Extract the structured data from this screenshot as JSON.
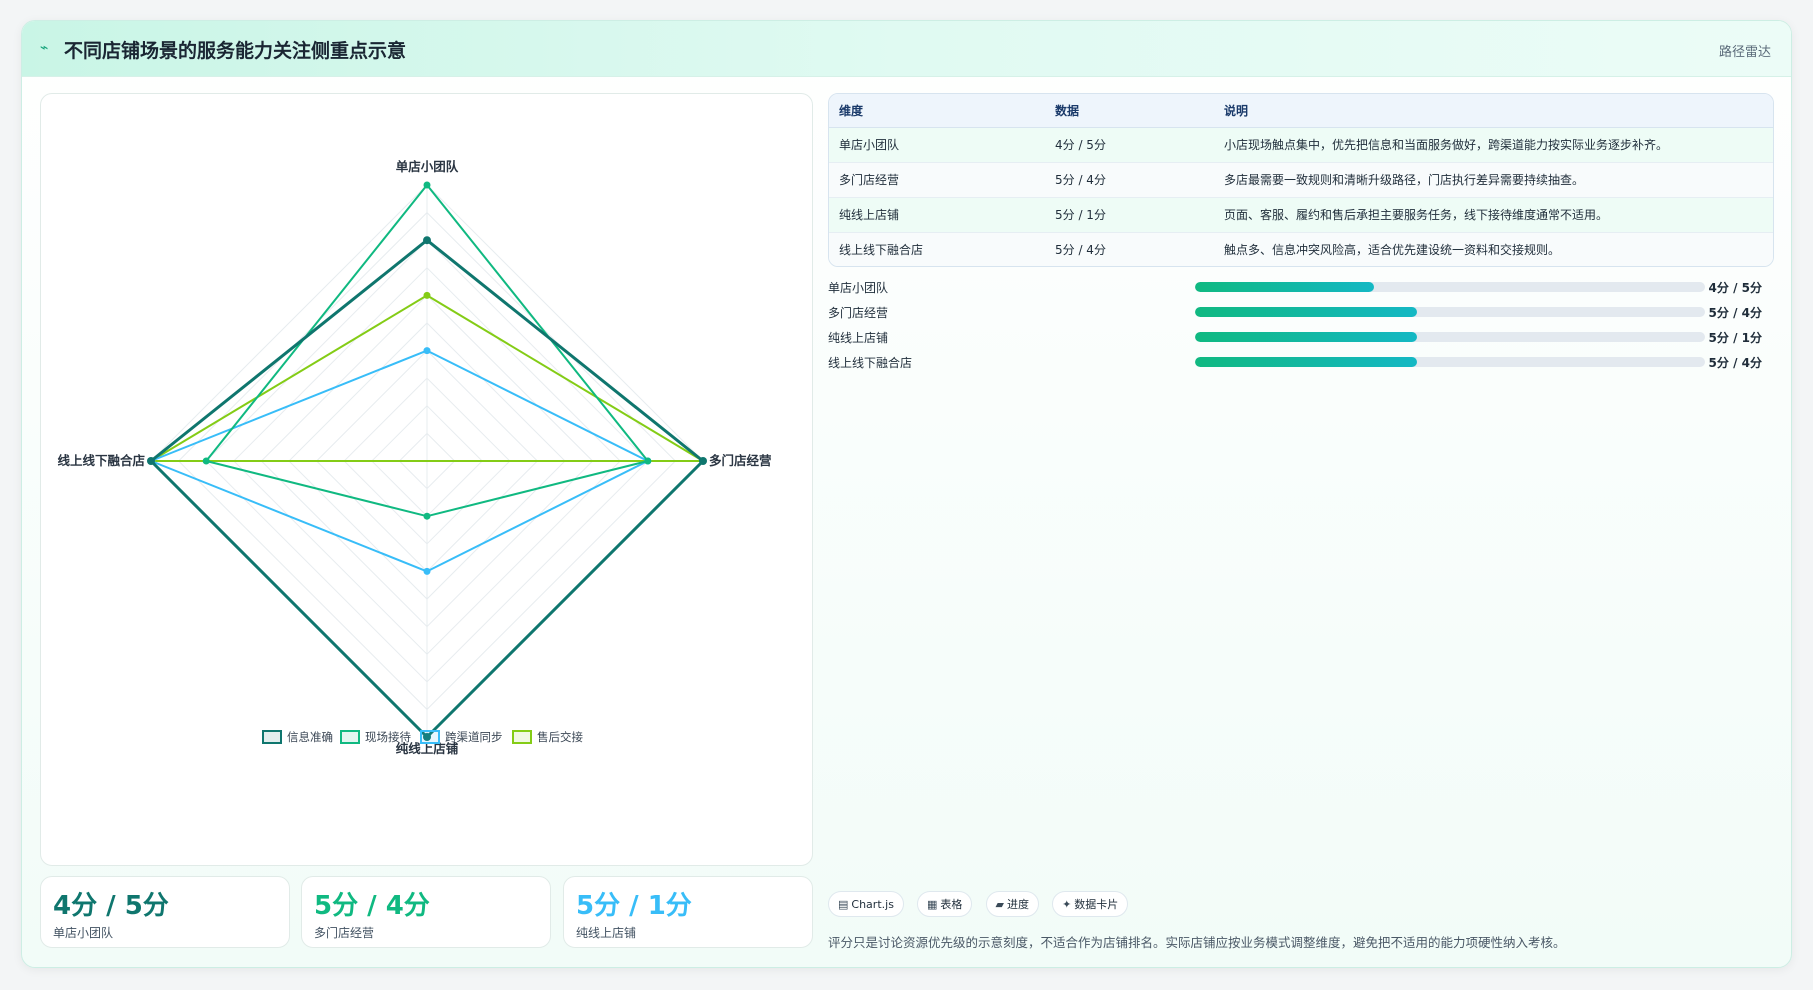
{
  "header": {
    "title_icon": "pulse-icon",
    "title": "不同店铺场景的服务能力关注侧重点示意",
    "tag": "路径雷达"
  },
  "chart_data": {
    "type": "radar",
    "axes": [
      "单店小团队",
      "多门店经营",
      "纯线上店铺",
      "线上线下融合店"
    ],
    "max": 5,
    "series": [
      {
        "name": "信息准确",
        "color": "#0f766e",
        "values": [
          4,
          5,
          5,
          5
        ]
      },
      {
        "name": "现场接待",
        "color": "#10b981",
        "values": [
          5,
          4,
          1,
          4
        ]
      },
      {
        "name": "跨渠道同步",
        "color": "#38bdf8",
        "values": [
          2,
          4,
          2,
          5
        ]
      },
      {
        "name": "售后交接",
        "color": "#84cc16",
        "values": [
          3,
          5,
          null,
          5
        ]
      }
    ],
    "legend_position": "bottom"
  },
  "kpis": [
    {
      "value": "4分 / 5分",
      "label": "单店小团队",
      "color": "#0f766e"
    },
    {
      "value": "5分 / 4分",
      "label": "多门店经营",
      "color": "#10b981"
    },
    {
      "value": "5分 / 1分",
      "label": "纯线上店铺",
      "color": "#38bdf8"
    }
  ],
  "table": {
    "headers": [
      "维度",
      "数据",
      "说明"
    ],
    "rows": [
      [
        "单店小团队",
        "4分 / 5分",
        "小店现场触点集中，优先把信息和当面服务做好，跨渠道能力按实际业务逐步补齐。"
      ],
      [
        "多门店经营",
        "5分 / 4分",
        "多店最需要一致规则和清晰升级路径，门店执行差异需要持续抽查。"
      ],
      [
        "纯线上店铺",
        "5分 / 1分",
        "页面、客服、履约和售后承担主要服务任务，线下接待维度通常不适用。"
      ],
      [
        "线上线下融合店",
        "5分 / 4分",
        "触点多、信息冲突风险高，适合优先建设统一资料和交接规则。"
      ]
    ]
  },
  "progress": [
    {
      "label": "单店小团队",
      "value": "4分 / 5分",
      "fraction": 0.35
    },
    {
      "label": "多门店经营",
      "value": "5分 / 4分",
      "fraction": 0.435
    },
    {
      "label": "纯线上店铺",
      "value": "5分 / 1分",
      "fraction": 0.435
    },
    {
      "label": "线上线下融合店",
      "value": "5分 / 4分",
      "fraction": 0.435
    }
  ],
  "pills": [
    {
      "icon": "chart-icon",
      "glyph": "▤",
      "label": "Chart.js"
    },
    {
      "icon": "table-icon",
      "glyph": "▦",
      "label": "表格"
    },
    {
      "icon": "progress-icon",
      "glyph": "▰",
      "label": "进度"
    },
    {
      "icon": "sparkle-icon",
      "glyph": "✦",
      "label": "数据卡片"
    }
  ],
  "footnote": "评分只是讨论资源优先级的示意刻度，不适合作为店铺排名。实际店铺应按业务模式调整维度，避免把不适用的能力项硬性纳入考核。"
}
